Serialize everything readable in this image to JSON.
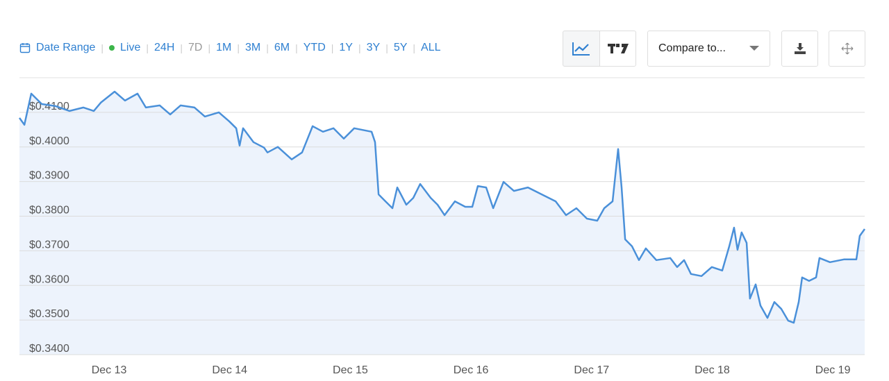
{
  "toolbar": {
    "date_range": "Date Range",
    "live": "Live",
    "ranges": [
      "24H",
      "7D",
      "1M",
      "3M",
      "6M",
      "YTD",
      "1Y",
      "3Y",
      "5Y",
      "ALL"
    ],
    "compare": "Compare to..."
  },
  "chart_data": {
    "type": "line",
    "x": [
      12.257,
      12.298,
      12.355,
      12.442,
      12.557,
      12.672,
      12.787,
      12.873,
      12.931,
      13.046,
      13.132,
      13.236,
      13.305,
      13.42,
      13.507,
      13.593,
      13.708,
      13.794,
      13.91,
      13.996,
      14.054,
      14.082,
      14.111,
      14.197,
      14.284,
      14.313,
      14.399,
      14.514,
      14.6,
      14.687,
      14.773,
      14.86,
      14.946,
      15.032,
      15.176,
      15.205,
      15.234,
      15.291,
      15.349,
      15.389,
      15.464,
      15.522,
      15.579,
      15.666,
      15.723,
      15.781,
      15.867,
      15.953,
      16.011,
      16.057,
      16.126,
      16.184,
      16.27,
      16.356,
      16.472,
      16.587,
      16.702,
      16.788,
      16.874,
      16.961,
      17.047,
      17.105,
      17.174,
      17.22,
      17.249,
      17.278,
      17.335,
      17.393,
      17.45,
      17.537,
      17.652,
      17.709,
      17.767,
      17.824,
      17.911,
      17.997,
      18.083,
      18.141,
      18.181,
      18.21,
      18.244,
      18.285,
      18.313,
      18.36,
      18.4,
      18.458,
      18.515,
      18.573,
      18.63,
      18.676,
      18.717,
      18.745,
      18.803,
      18.861,
      18.889,
      18.976,
      19.091,
      19.195,
      19.223,
      19.264
    ],
    "series": [
      {
        "color": "#4a90d9",
        "fill": "#edf3fc",
        "values": [
          0.4084,
          0.4064,
          0.4154,
          0.4124,
          0.4118,
          0.4104,
          0.4114,
          0.4104,
          0.4128,
          0.416,
          0.4134,
          0.4154,
          0.4114,
          0.412,
          0.4094,
          0.412,
          0.4114,
          0.4088,
          0.41,
          0.4074,
          0.4054,
          0.4004,
          0.4054,
          0.4014,
          0.3998,
          0.3984,
          0.4,
          0.3964,
          0.3984,
          0.406,
          0.4044,
          0.4054,
          0.4024,
          0.4054,
          0.4044,
          0.4014,
          0.3863,
          0.3843,
          0.3823,
          0.3883,
          0.3833,
          0.3853,
          0.3893,
          0.3853,
          0.3833,
          0.3803,
          0.3843,
          0.3827,
          0.3827,
          0.3887,
          0.3883,
          0.3823,
          0.3899,
          0.3873,
          0.3883,
          0.3863,
          0.3843,
          0.3803,
          0.3823,
          0.3793,
          0.3787,
          0.3823,
          0.3843,
          0.3994,
          0.3883,
          0.3733,
          0.3713,
          0.3673,
          0.3707,
          0.3673,
          0.3679,
          0.3653,
          0.3673,
          0.3633,
          0.3627,
          0.3653,
          0.3643,
          0.3713,
          0.3767,
          0.3703,
          0.3753,
          0.3723,
          0.3562,
          0.3603,
          0.3542,
          0.3506,
          0.3552,
          0.3532,
          0.3498,
          0.3492,
          0.3552,
          0.3623,
          0.3613,
          0.3623,
          0.3679,
          0.3667,
          0.3675,
          0.3675,
          0.3743,
          0.3763
        ]
      }
    ],
    "xlim": [
      12.257,
      19.264
    ],
    "xticks": [
      {
        "value": 13,
        "label": "Dec 13"
      },
      {
        "value": 14,
        "label": "Dec 14"
      },
      {
        "value": 15,
        "label": "Dec 15"
      },
      {
        "value": 16,
        "label": "Dec 16"
      },
      {
        "value": 17,
        "label": "Dec 17"
      },
      {
        "value": 18,
        "label": "Dec 18"
      },
      {
        "value": 19,
        "label": "Dec 19"
      }
    ],
    "ylim": [
      0.34,
      0.42
    ],
    "yticks": [
      {
        "value": 0.34,
        "label": "$0.3400"
      },
      {
        "value": 0.35,
        "label": "$0.3500"
      },
      {
        "value": 0.36,
        "label": "$0.3600"
      },
      {
        "value": 0.37,
        "label": "$0.3700"
      },
      {
        "value": 0.38,
        "label": "$0.3800"
      },
      {
        "value": 0.39,
        "label": "$0.3900"
      },
      {
        "value": 0.4,
        "label": "$0.4000"
      },
      {
        "value": 0.41,
        "label": "$0.4100"
      }
    ],
    "grid": true
  }
}
